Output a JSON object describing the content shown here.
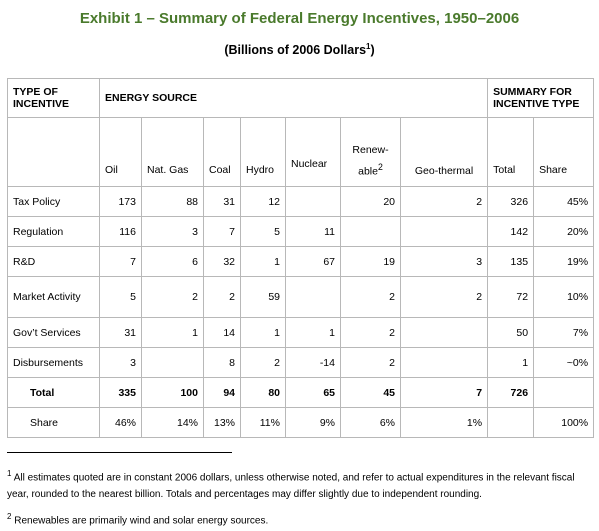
{
  "title": "Exhibit 1 – Summary of Federal Energy Incentives, 1950–2006",
  "subtitle": {
    "text": "(Billions of 2006 Dollars",
    "sup": "1",
    "close": ")"
  },
  "table": {
    "corner_label": "TYPE OF INCENTIVE",
    "group_label": "ENERGY SOURCE",
    "summary_label": "SUMMARY FOR INCENTIVE TYPE",
    "columns": [
      "Oil",
      "Nat. Gas",
      "Coal",
      "Hydro",
      "Nuclear",
      "Renew-able",
      "Geo-thermal",
      "Total",
      "Share"
    ],
    "renew_sup": "2",
    "rows": [
      {
        "label": "Tax Policy",
        "cells": [
          "173",
          "88",
          "31",
          "12",
          "",
          "20",
          "2",
          "326",
          "45%"
        ]
      },
      {
        "label": "Regulation",
        "cells": [
          "116",
          "3",
          "7",
          "5",
          "11",
          "",
          "",
          "142",
          "20%"
        ]
      },
      {
        "label": "R&D",
        "cells": [
          "7",
          "6",
          "32",
          "1",
          "67",
          "19",
          "3",
          "135",
          "19%"
        ]
      },
      {
        "label": "Market Activity",
        "cells": [
          "5",
          "2",
          "2",
          "59",
          "",
          "2",
          "2",
          "72",
          "10%"
        ]
      },
      {
        "label": "Gov’t Services",
        "cells": [
          "31",
          "1",
          "14",
          "1",
          "1",
          "2",
          "",
          "50",
          "7%"
        ]
      },
      {
        "label": "Disbursements",
        "cells": [
          "3",
          "",
          "8",
          "2",
          "-14",
          "2",
          "",
          "1",
          "~0%"
        ]
      },
      {
        "label": "Total",
        "cells": [
          "335",
          "100",
          "94",
          "80",
          "65",
          "45",
          "7",
          "726",
          ""
        ]
      },
      {
        "label": "Share",
        "cells": [
          "46%",
          "14%",
          "13%",
          "11%",
          "9%",
          "6%",
          "1%",
          "",
          "100%"
        ]
      }
    ]
  },
  "footnotes": [
    {
      "marker": "1",
      "text": "All estimates quoted are in constant 2006 dollars, unless otherwise noted, and refer to actual expenditures in the relevant fiscal year, rounded to the nearest billion. Totals and percentages may differ slightly due to independent rounding."
    },
    {
      "marker": "2",
      "text": "Renewables are primarily wind and solar energy sources."
    }
  ]
}
